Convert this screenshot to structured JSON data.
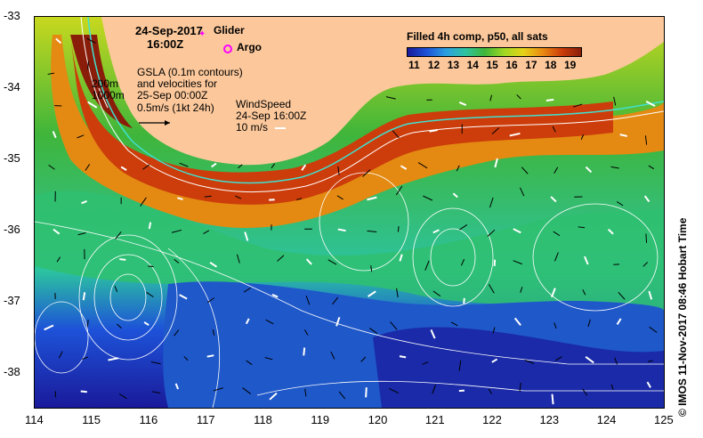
{
  "map": {
    "date_label": "24-Sep-2017",
    "time_label": "16:00Z",
    "legend": {
      "glider_label": "Glider",
      "argo_label": "Argo",
      "glider_color": "#ff00ff",
      "argo_color": "#ff00ff"
    },
    "depth_labels": [
      "200m",
      "1000m"
    ],
    "gsla_note": [
      "GSLA (0.1m contours)",
      "and velocities for",
      "25-Sep 00:00Z",
      "0.5m/s (1kt 24h)"
    ],
    "wind_note": [
      "WindSpeed",
      "24-Sep 16:00Z",
      "10 m/s"
    ],
    "colorbar": {
      "title": "Filled 4h comp, p50, all sats",
      "ticks": [
        "11",
        "12",
        "13",
        "14",
        "15",
        "16",
        "17",
        "18",
        "19"
      ],
      "colors": [
        "#1a1a9a",
        "#1d52d8",
        "#2b9fe0",
        "#2cc3a0",
        "#3fb53a",
        "#9ed822",
        "#e6d318",
        "#e98a12",
        "#cc3d0b",
        "#8a1d0a"
      ]
    },
    "land_color": "#fcc89b",
    "x_ticks": [
      "114",
      "115",
      "116",
      "117",
      "118",
      "119",
      "120",
      "121",
      "122",
      "123",
      "124",
      "125"
    ],
    "y_ticks": [
      "-33",
      "-34",
      "-35",
      "-36",
      "-37",
      "-38"
    ],
    "credit": "© IMOS 11-Nov-2017 08:46 Hobart Time"
  }
}
